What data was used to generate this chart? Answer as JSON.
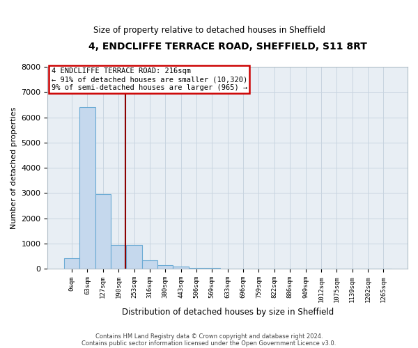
{
  "title": "4, ENDCLIFFE TERRACE ROAD, SHEFFIELD, S11 8RT",
  "subtitle": "Size of property relative to detached houses in Sheffield",
  "xlabel": "Distribution of detached houses by size in Sheffield",
  "ylabel": "Number of detached properties",
  "bar_color": "#c5d8ed",
  "bar_edge_color": "#6aaad4",
  "marker_color": "#8b0000",
  "annotation_box_color": "#cc0000",
  "categories": [
    "0sqm",
    "63sqm",
    "127sqm",
    "190sqm",
    "253sqm",
    "316sqm",
    "380sqm",
    "443sqm",
    "506sqm",
    "569sqm",
    "633sqm",
    "696sqm",
    "759sqm",
    "822sqm",
    "886sqm",
    "949sqm",
    "1012sqm",
    "1075sqm",
    "1139sqm",
    "1202sqm",
    "1265sqm"
  ],
  "values": [
    430,
    6400,
    2950,
    950,
    950,
    350,
    150,
    80,
    50,
    30,
    18,
    12,
    8,
    5,
    4,
    3,
    2,
    2,
    1,
    1,
    0
  ],
  "property_bin_index": 3.45,
  "annotation_lines": [
    "4 ENDCLIFFE TERRACE ROAD: 216sqm",
    "← 91% of detached houses are smaller (10,320)",
    "9% of semi-detached houses are larger (965) →"
  ],
  "ylim": [
    0,
    8000
  ],
  "yticks": [
    0,
    1000,
    2000,
    3000,
    4000,
    5000,
    6000,
    7000,
    8000
  ],
  "footnote1": "Contains HM Land Registry data © Crown copyright and database right 2024.",
  "footnote2": "Contains public sector information licensed under the Open Government Licence v3.0.",
  "grid_color": "#c8d4e0",
  "background_color": "#e8eef4"
}
